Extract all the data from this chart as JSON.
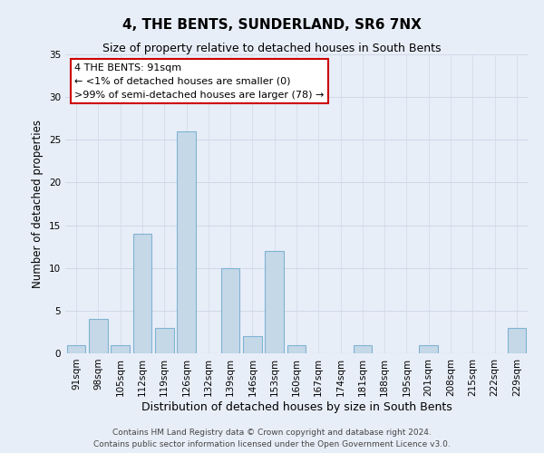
{
  "title": "4, THE BENTS, SUNDERLAND, SR6 7NX",
  "subtitle": "Size of property relative to detached houses in South Bents",
  "xlabel": "Distribution of detached houses by size in South Bents",
  "ylabel": "Number of detached properties",
  "categories": [
    "91sqm",
    "98sqm",
    "105sqm",
    "112sqm",
    "119sqm",
    "126sqm",
    "132sqm",
    "139sqm",
    "146sqm",
    "153sqm",
    "160sqm",
    "167sqm",
    "174sqm",
    "181sqm",
    "188sqm",
    "195sqm",
    "201sqm",
    "208sqm",
    "215sqm",
    "222sqm",
    "229sqm"
  ],
  "values": [
    1,
    4,
    1,
    14,
    3,
    26,
    0,
    10,
    2,
    12,
    1,
    0,
    0,
    1,
    0,
    0,
    1,
    0,
    0,
    0,
    3
  ],
  "bar_color": "#c5d8e8",
  "bar_edgecolor": "#7fb3d3",
  "ylim": [
    0,
    35
  ],
  "yticks": [
    0,
    5,
    10,
    15,
    20,
    25,
    30,
    35
  ],
  "grid_color": "#d0d8e8",
  "bg_color": "#e8eef8",
  "annotation_text": "4 THE BENTS: 91sqm\n← <1% of detached houses are smaller (0)\n>99% of semi-detached houses are larger (78) →",
  "annotation_box_color": "#ffffff",
  "annotation_border_color": "#cc0000",
  "footer_line1": "Contains HM Land Registry data © Crown copyright and database right 2024.",
  "footer_line2": "Contains public sector information licensed under the Open Government Licence v3.0.",
  "title_fontsize": 11,
  "subtitle_fontsize": 9,
  "xlabel_fontsize": 9,
  "ylabel_fontsize": 8.5,
  "tick_fontsize": 7.5,
  "annotation_fontsize": 8,
  "footer_fontsize": 6.5
}
